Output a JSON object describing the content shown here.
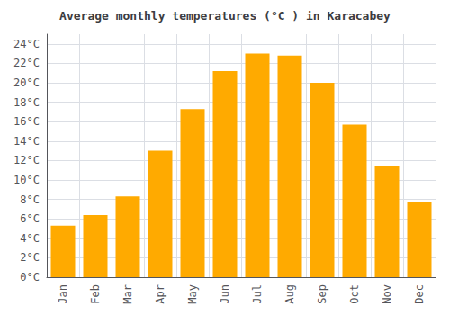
{
  "chart_data": {
    "type": "bar",
    "title": "Average monthly temperatures (°C ) in Karacabey",
    "categories": [
      "Jan",
      "Feb",
      "Mar",
      "Apr",
      "May",
      "Jun",
      "Jul",
      "Aug",
      "Sep",
      "Oct",
      "Nov",
      "Dec"
    ],
    "values": [
      5.3,
      6.4,
      8.3,
      13.0,
      17.3,
      21.2,
      23.0,
      22.8,
      20.0,
      15.7,
      11.4,
      7.7
    ],
    "color": "#FFAA00",
    "ylim": [
      0,
      25
    ],
    "yticks": [
      {
        "value": 0,
        "label": "0°C"
      },
      {
        "value": 2,
        "label": "2°C"
      },
      {
        "value": 4,
        "label": "4°C"
      },
      {
        "value": 6,
        "label": "6°C"
      },
      {
        "value": 8,
        "label": "8°C"
      },
      {
        "value": 10,
        "label": "10°C"
      },
      {
        "value": 12,
        "label": "12°C"
      },
      {
        "value": 14,
        "label": "14°C"
      },
      {
        "value": 16,
        "label": "16°C"
      },
      {
        "value": 18,
        "label": "18°C"
      },
      {
        "value": 20,
        "label": "20°C"
      },
      {
        "value": 22,
        "label": "22°C"
      },
      {
        "value": 24,
        "label": "24°C"
      }
    ],
    "grid": true
  }
}
